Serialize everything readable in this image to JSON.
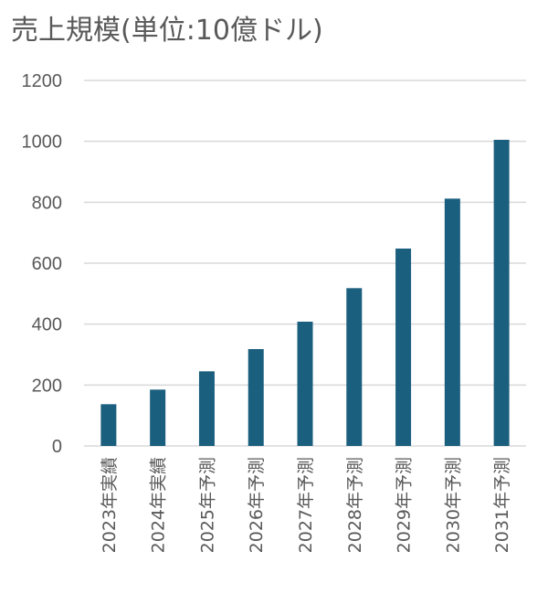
{
  "chart_data": {
    "type": "bar",
    "title": "売上規模(単位:10億ドル)",
    "xlabel": "",
    "ylabel": "",
    "ylim": [
      0,
      1200
    ],
    "yticks": [
      0,
      200,
      400,
      600,
      800,
      1000,
      1200
    ],
    "grid": true,
    "categories": [
      "2023年実績",
      "2024年実績",
      "2025年予測",
      "2026年予測",
      "2027年予測",
      "2028年予測",
      "2029年予測",
      "2030年予測",
      "2031年予測"
    ],
    "values": [
      137,
      185,
      245,
      318,
      408,
      518,
      648,
      812,
      1005
    ],
    "bar_color": "#1b5f7e",
    "grid_color": "#d9d9d9",
    "text_color": "#595959"
  }
}
